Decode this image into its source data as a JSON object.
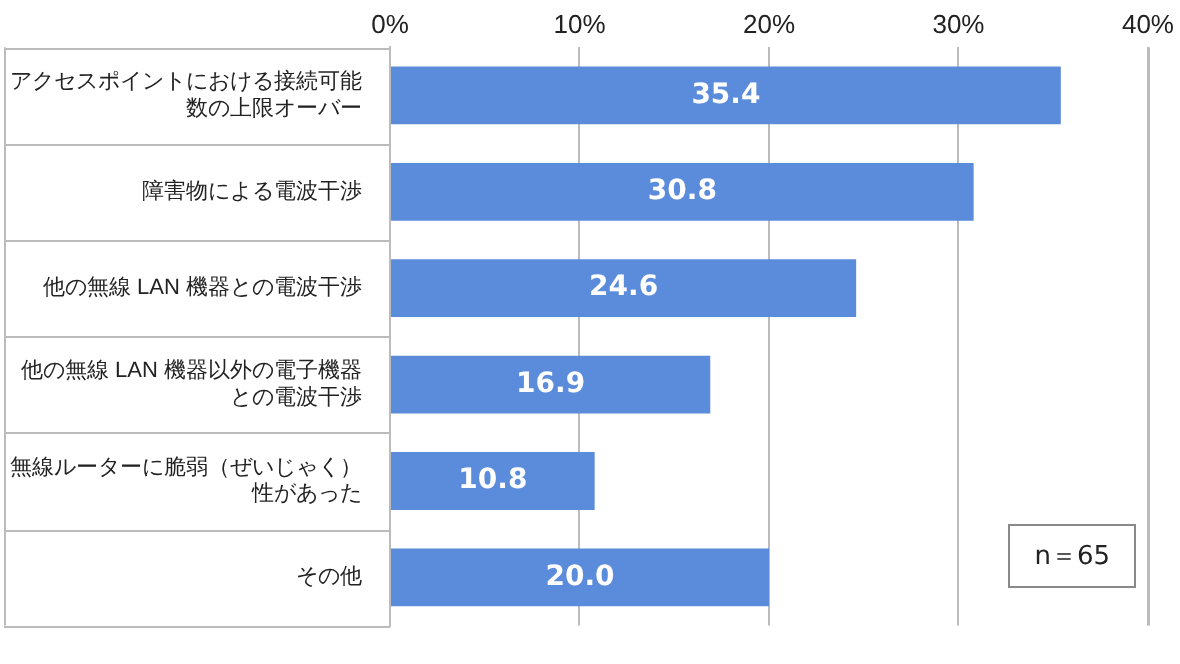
{
  "chart_data": {
    "type": "bar",
    "orientation": "horizontal",
    "categories": [
      "アクセスポイントにおける接続可能数の上限オーバー",
      "障害物による電波干渉",
      "他の無線 LAN 機器との電波干渉",
      "他の無線 LAN 機器以外の電子機器との電波干渉",
      "無線ルーターに脆弱（ぜいじゃく）性があった",
      "その他"
    ],
    "values": [
      35.4,
      30.8,
      24.6,
      16.9,
      10.8,
      20.0
    ],
    "value_labels": [
      "35.4",
      "30.8",
      "24.6",
      "16.9",
      "10.8",
      "20.0"
    ],
    "color": "#5b8bdb",
    "xlim": [
      0,
      40
    ],
    "xticks": [
      {
        "value": 0,
        "label": "0%"
      },
      {
        "value": 10,
        "label": "10%"
      },
      {
        "value": 20,
        "label": "20%"
      },
      {
        "value": 30,
        "label": "30%"
      },
      {
        "value": 40,
        "label": "40%"
      }
    ],
    "grid": true,
    "annotations": [
      "n＝65"
    ]
  }
}
